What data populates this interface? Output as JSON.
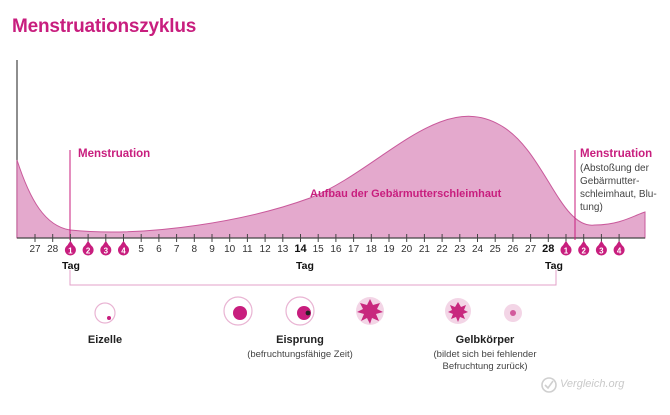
{
  "title": "Menstruationszyklus",
  "labels": {
    "menstruation_left": "Menstruation",
    "aufbau": "Aufbau der Gebärmutterschleimhaut",
    "menstruation_right": "Menstruation",
    "menstruation_right_note": "(Abstoßung der Gebärmutter-schleimhaut, Blu-tung)"
  },
  "timeline": {
    "days": [
      "27",
      "28",
      "1",
      "2",
      "3",
      "4",
      "5",
      "6",
      "7",
      "8",
      "9",
      "10",
      "11",
      "12",
      "13",
      "14",
      "15",
      "16",
      "17",
      "18",
      "19",
      "20",
      "21",
      "22",
      "23",
      "24",
      "25",
      "26",
      "27",
      "28",
      "1",
      "2",
      "3",
      "4"
    ],
    "period_days": [
      2,
      3,
      4,
      5,
      30,
      31,
      32,
      33
    ],
    "bold_days": [
      15,
      29
    ],
    "tag_label": "Tag",
    "tag_marks": [
      "1",
      "14",
      "28"
    ]
  },
  "stages": {
    "eizelle": "Eizelle",
    "eisprung": "Eisprung",
    "eisprung_sub": "(befruchtungsfähige Zeit)",
    "gelbkoerper": "Gelbkörper",
    "gelbkoerper_sub": "(bildet sich bei fehlender Befruchtung zurück)"
  },
  "logo": "Vergleich.org",
  "colors": {
    "accent": "#c81e7e",
    "fill": "#e4a9cd",
    "fill_light": "#f3d5e6"
  }
}
